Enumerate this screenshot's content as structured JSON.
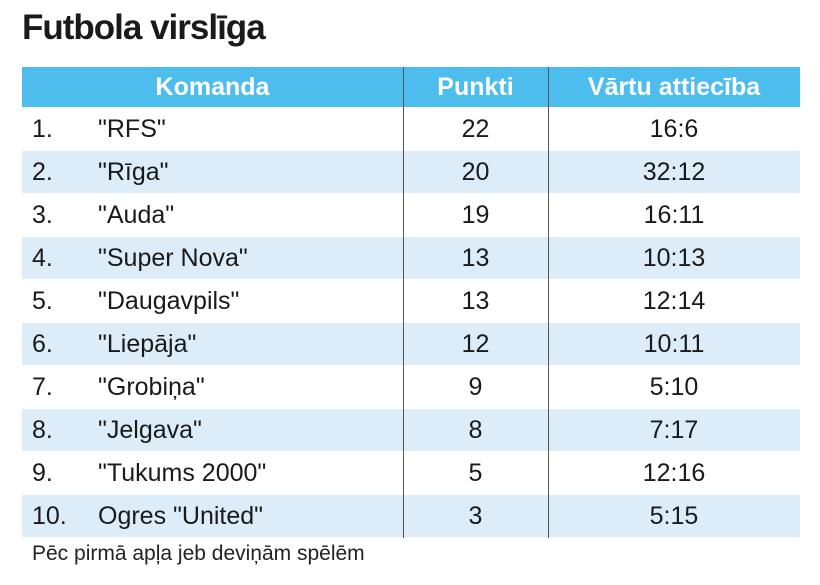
{
  "header": {
    "title": "Futbola virslīga"
  },
  "table": {
    "columns": [
      "Komanda",
      "Punkti",
      "Vārtu attiecība"
    ],
    "rows": [
      [
        "1.",
        "\"RFS\"",
        22,
        "16:6"
      ],
      [
        "2.",
        "\"Rīga\"",
        20,
        "32:12"
      ],
      [
        "3.",
        "\"Auda\"",
        19,
        "16:11"
      ],
      [
        "4.",
        "\"Super Nova\"",
        13,
        "10:13"
      ],
      [
        "5.",
        "\"Daugavpils\"",
        13,
        "12:14"
      ],
      [
        "6.",
        "\"Liepāja\"",
        12,
        "10:11"
      ],
      [
        "7.",
        "\"Grobiņa\"",
        9,
        "5:10"
      ],
      [
        "8.",
        "\"Jelgava\"",
        8,
        "7:17"
      ],
      [
        "9.",
        "\"Tukums 2000\"",
        5,
        "12:16"
      ],
      [
        "10.",
        "Ogres \"United\"",
        3,
        "5:15"
      ]
    ]
  },
  "footer": {
    "note": "Pēc pirmā apļa jeb deviņām spēlēm"
  }
}
